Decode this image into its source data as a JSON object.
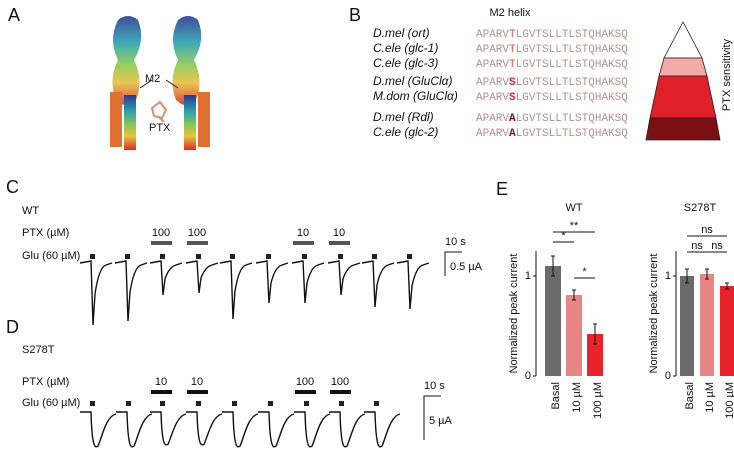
{
  "panel_labels": [
    "A",
    "B",
    "C",
    "D",
    "E"
  ],
  "panel_a": {
    "labels": [
      "M2",
      "PTX"
    ]
  },
  "panel_b": {
    "title": "M2 helix",
    "scale_label": "PTX sensitivity",
    "rows": [
      {
        "species": "D.mel (ort)",
        "sequence": [
          "APARV",
          "T",
          "LGVTSLLTLSTQHAKSQ"
        ]
      },
      {
        "species": "C.ele (glc-1)",
        "sequence": [
          "APARV",
          "T",
          "LGVTSLLTLSTQHAKSQ"
        ]
      },
      {
        "species": "C.ele (glc-3)",
        "sequence": [
          "APARV",
          "T",
          "LGVTSLLTLSTQHAKSQ"
        ]
      },
      {
        "species": "D.mel (GluClα)",
        "sequence": [
          "APARV",
          "S",
          "LGVTSLLTLSTQHAKSQ"
        ]
      },
      {
        "species": "M.dom (GluClα)",
        "sequence": [
          "APARV",
          "S",
          "LGVTSLLTLSTQHAKSQ"
        ]
      },
      {
        "species": "D.mel (Rdl)",
        "sequence": [
          "APARV",
          "A",
          "LGVTSLLTLSTQHAKSQ"
        ]
      },
      {
        "species": "C.ele (glc-2)",
        "sequence": [
          "APARV",
          "A",
          "LGVTSLLTLSTQHAKSQ"
        ]
      }
    ]
  },
  "panel_c": {
    "genotype": "WT",
    "ptx_label": "PTX (µM)",
    "glu_label": "Glu (60 µM)",
    "ptx_doses": [
      "100",
      "100",
      "10",
      "10"
    ],
    "time_scale": "10 s",
    "current_scale": "0.5 µA"
  },
  "panel_d": {
    "genotype": "S278T",
    "ptx_label": "PTX (µM)",
    "glu_label": "Glu (60 µM)",
    "ptx_doses": [
      "10",
      "10",
      "100",
      "100"
    ],
    "time_scale": "10 s",
    "current_scale": "5 µA"
  },
  "chart_data": [
    {
      "type": "bar",
      "title": "WT",
      "y_label": "Normalized peak current",
      "categories": [
        "Basal",
        "10 µM",
        "100 µM"
      ],
      "values": [
        1.1,
        0.81,
        0.42
      ],
      "errors": [
        0.1,
        0.05,
        0.1
      ],
      "colors": [
        "#6b6b6b",
        "#e88585",
        "#e8232b"
      ],
      "ylim": [
        0,
        1.25
      ],
      "yticks": [
        0,
        1
      ],
      "annotations": [
        "**",
        "*",
        "*"
      ]
    },
    {
      "type": "bar",
      "title": "S278T",
      "y_label": "Normalized peak current",
      "categories": [
        "Basal",
        "10 µM",
        "100 µM"
      ],
      "values": [
        1.0,
        1.02,
        0.9
      ],
      "errors": [
        0.07,
        0.05,
        0.03
      ],
      "colors": [
        "#6b6b6b",
        "#e88585",
        "#e8232b"
      ],
      "ylim": [
        0,
        1.25
      ],
      "yticks": [
        0,
        1
      ],
      "annotations": [
        "ns",
        "ns",
        "ns"
      ]
    }
  ]
}
